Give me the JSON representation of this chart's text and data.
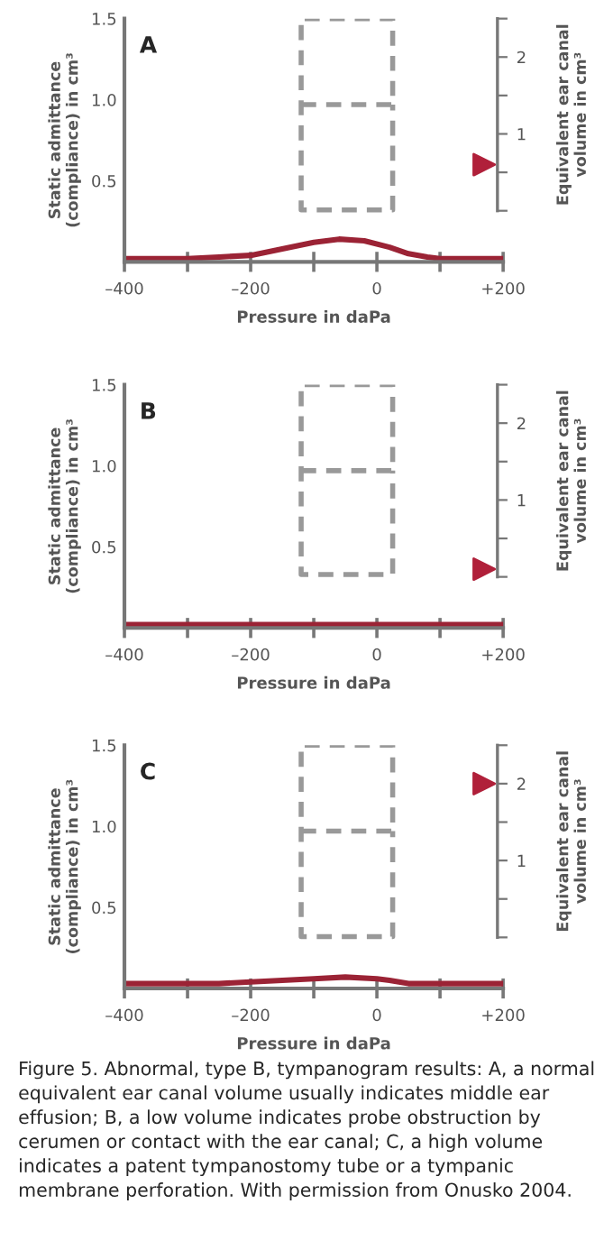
{
  "chart_data": [
    {
      "type": "line",
      "title": "A",
      "xlabel": "Pressure in daPa",
      "ylabel": "Static admittance\n(compliance) in cm³",
      "y2label": "Equivalent ear canal\nvolume in cm³",
      "xlim": [
        -400,
        200
      ],
      "xticks": [
        {
          "value": -400,
          "label": "–400"
        },
        {
          "value": -300,
          "label": null
        },
        {
          "value": -200,
          "label": "–200"
        },
        {
          "value": -100,
          "label": null
        },
        0,
        {
          "value": 100,
          "label": null
        },
        {
          "value": 200,
          "label": "+200"
        }
      ],
      "ylim": [
        0,
        1.5
      ],
      "yticks": [
        {
          "value": 0.5,
          "label": "0.5"
        },
        {
          "value": 1,
          "label": "1.0"
        },
        {
          "value": 1.5,
          "label": "1.5"
        }
      ],
      "y2lim": [
        0,
        2.5
      ],
      "y2ticks": [
        {
          "value": 0,
          "label": null
        },
        {
          "value": 0.5,
          "label": null
        },
        1,
        {
          "value": 1.5,
          "label": null
        },
        2,
        {
          "value": 2.5,
          "label": null
        }
      ],
      "series": [
        {
          "type": "line",
          "color": "#9b2335",
          "line_style": "solid",
          "x": [
            -400,
            -300,
            -250,
            -200,
            -150,
            -100,
            -60,
            -20,
            20,
            50,
            80,
            100,
            150,
            200
          ],
          "values": [
            0.02,
            0.02,
            0.03,
            0.04,
            0.08,
            0.12,
            0.14,
            0.13,
            0.09,
            0.05,
            0.03,
            0.02,
            0.02,
            0.02
          ]
        },
        {
          "type": "line",
          "color": "#999999",
          "line_style": "dashed",
          "x": [
            -120,
            25,
            25,
            -120,
            -120,
            25,
            25
          ],
          "values": [
            0.97,
            0.97,
            1.5,
            1.5,
            0.32,
            0.32,
            0.97
          ]
        },
        {
          "type": "scatter",
          "axis": "y2",
          "marker": "triangle",
          "color": "#b0203a",
          "x": [
            170
          ],
          "values": [
            0.6
          ]
        }
      ]
    },
    {
      "type": "line",
      "title": "B",
      "xlabel": "Pressure in daPa",
      "ylabel": "Static admittance\n(compliance) in cm³",
      "y2label": "Equivalent ear canal\nvolume in cm³",
      "xlim": [
        -400,
        200
      ],
      "xticks": [
        {
          "value": -400,
          "label": "–400"
        },
        {
          "value": -300,
          "label": null
        },
        {
          "value": -200,
          "label": "–200"
        },
        {
          "value": -100,
          "label": null
        },
        0,
        {
          "value": 100,
          "label": null
        },
        {
          "value": 200,
          "label": "+200"
        }
      ],
      "ylim": [
        0,
        1.5
      ],
      "yticks": [
        {
          "value": 0.5,
          "label": "0.5"
        },
        {
          "value": 1,
          "label": "1.0"
        },
        {
          "value": 1.5,
          "label": "1.5"
        }
      ],
      "y2lim": [
        0,
        2.5
      ],
      "y2ticks": [
        {
          "value": 0,
          "label": null
        },
        {
          "value": 0.5,
          "label": null
        },
        1,
        {
          "value": 1.5,
          "label": null
        },
        2,
        {
          "value": 2.5,
          "label": null
        }
      ],
      "series": [
        {
          "type": "line",
          "color": "#9b2335",
          "line_style": "solid",
          "x": [
            -400,
            200
          ],
          "values": [
            0.02,
            0.02
          ]
        },
        {
          "type": "line",
          "color": "#999999",
          "line_style": "dashed",
          "x": [
            -120,
            25,
            25,
            -120,
            -120,
            25,
            25
          ],
          "values": [
            0.97,
            0.97,
            1.5,
            1.5,
            0.33,
            0.33,
            0.97
          ]
        },
        {
          "type": "scatter",
          "axis": "y2",
          "marker": "triangle",
          "color": "#b0203a",
          "x": [
            170
          ],
          "values": [
            0.1
          ]
        }
      ]
    },
    {
      "type": "line",
      "title": "C",
      "xlabel": "Pressure in daPa",
      "ylabel": "Static admittance\n(compliance) in cm³",
      "y2label": "Equivalent ear canal\nvolume in cm³",
      "xlim": [
        -400,
        200
      ],
      "xticks": [
        {
          "value": -400,
          "label": "–400"
        },
        {
          "value": -300,
          "label": null
        },
        {
          "value": -200,
          "label": "–200"
        },
        {
          "value": -100,
          "label": null
        },
        0,
        {
          "value": 100,
          "label": null
        },
        {
          "value": 200,
          "label": "+200"
        }
      ],
      "ylim": [
        0,
        1.5
      ],
      "yticks": [
        {
          "value": 0.5,
          "label": "0.5"
        },
        {
          "value": 1,
          "label": "1.0"
        },
        {
          "value": 1.5,
          "label": "1.5"
        }
      ],
      "y2lim": [
        0,
        2.5
      ],
      "y2ticks": [
        {
          "value": 0,
          "label": null
        },
        {
          "value": 0.5,
          "label": null
        },
        1,
        {
          "value": 1.5,
          "label": null
        },
        2,
        {
          "value": 2.5,
          "label": null
        }
      ],
      "annotations": [
        "Figure 5. Abnormal, type B, tympanogram results: A, a normal equivalent ear canal volume usually indicates middle ear effusion; B, a low volume indicates probe obstruction by cerumen or contact with the ear canal; C, a high volume indicates a patent tympanostomy tube or a tympanic membrane perforation. With permission from Onusko 2004."
      ],
      "series": [
        {
          "type": "line",
          "color": "#9b2335",
          "line_style": "solid",
          "x": [
            -400,
            -250,
            -200,
            -150,
            -100,
            -50,
            0,
            20,
            50,
            100,
            200
          ],
          "values": [
            0.03,
            0.03,
            0.04,
            0.05,
            0.06,
            0.07,
            0.06,
            0.05,
            0.03,
            0.03,
            0.03
          ]
        },
        {
          "type": "line",
          "color": "#999999",
          "line_style": "dashed",
          "x": [
            -120,
            25,
            25,
            -120,
            -120,
            25,
            25
          ],
          "values": [
            0.97,
            0.97,
            1.5,
            1.5,
            0.32,
            0.32,
            0.97
          ]
        },
        {
          "type": "scatter",
          "axis": "y2",
          "marker": "triangle",
          "color": "#b0203a",
          "x": [
            170
          ],
          "values": [
            2.0
          ]
        }
      ]
    }
  ]
}
